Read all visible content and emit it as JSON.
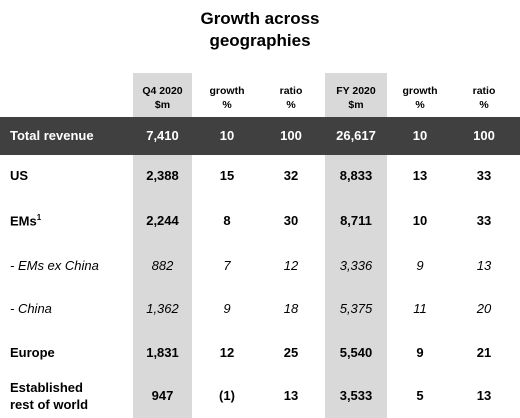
{
  "title": {
    "line1": "Growth across",
    "line2": "geographies"
  },
  "headers": [
    {
      "line1": "Q4 2020",
      "line2": "$m"
    },
    {
      "line1": "growth",
      "line2": "%"
    },
    {
      "line1": "ratio",
      "line2": "%"
    },
    {
      "line1": "FY 2020",
      "line2": "$m"
    },
    {
      "line1": "growth",
      "line2": "%"
    },
    {
      "line1": "ratio",
      "line2": "%"
    }
  ],
  "total": {
    "label": "Total revenue",
    "values": [
      "7,410",
      "10",
      "100",
      "26,617",
      "10",
      "100"
    ]
  },
  "rows": [
    {
      "label": "US",
      "values": [
        "2,388",
        "15",
        "32",
        "8,833",
        "13",
        "33"
      ]
    },
    {
      "label": "EMs",
      "label_sup": "1",
      "values": [
        "2,244",
        "8",
        "30",
        "8,711",
        "10",
        "33"
      ]
    },
    {
      "label": "- EMs ex China",
      "values": [
        "882",
        "7",
        "12",
        "3,336",
        "9",
        "13"
      ]
    },
    {
      "label": "- China",
      "values": [
        "1,362",
        "9",
        "18",
        "5,375",
        "11",
        "20"
      ]
    },
    {
      "label": "Europe",
      "values": [
        "1,831",
        "12",
        "25",
        "5,540",
        "9",
        "21"
      ]
    },
    {
      "label_line1": "Established",
      "label_line2": "rest of world",
      "values": [
        "947",
        "(1)",
        "13",
        "3,533",
        "5",
        "13"
      ]
    }
  ]
}
